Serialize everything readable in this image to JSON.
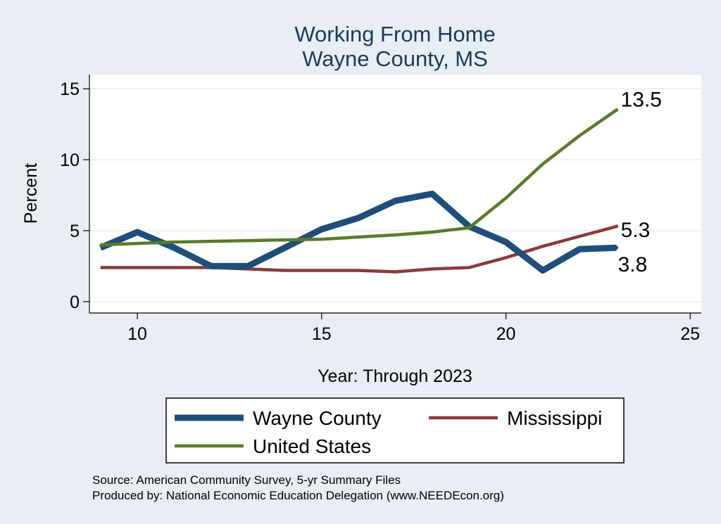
{
  "chart_data": {
    "type": "line",
    "title": [
      "Working From Home",
      "Wayne County, MS"
    ],
    "xlabel": "Year: Through 2023",
    "ylabel": "Percent",
    "xlim": [
      8.7,
      25.3
    ],
    "ylim": [
      -0.8,
      16
    ],
    "x_ticks": [
      10,
      15,
      20,
      25
    ],
    "y_ticks": [
      0,
      5,
      10,
      15
    ],
    "grid": true,
    "legend_position": "bottom",
    "x": [
      9,
      10,
      11,
      12,
      13,
      14,
      15,
      16,
      17,
      18,
      19,
      20,
      21,
      22,
      23
    ],
    "series": [
      {
        "name": "Wayne County",
        "color": "#1f4e79",
        "values": [
          3.8,
          4.9,
          3.8,
          2.5,
          2.5,
          3.8,
          5.1,
          5.9,
          7.1,
          7.6,
          5.3,
          4.2,
          2.2,
          3.7,
          3.8
        ],
        "end_label": "3.8"
      },
      {
        "name": "Mississippi",
        "color": "#8b3a3a",
        "values": [
          2.4,
          2.4,
          2.4,
          2.4,
          2.3,
          2.2,
          2.2,
          2.2,
          2.1,
          2.3,
          2.4,
          3.1,
          3.9,
          4.6,
          5.3
        ],
        "end_label": "5.3"
      },
      {
        "name": "United States",
        "color": "#5a7a2a",
        "values": [
          4.0,
          4.1,
          4.2,
          4.25,
          4.3,
          4.35,
          4.4,
          4.55,
          4.7,
          4.9,
          5.2,
          7.3,
          9.7,
          11.7,
          13.5
        ],
        "end_label": "13.5"
      }
    ]
  },
  "source_lines": [
    "Source: American Community Survey, 5-yr Summary Files",
    "Produced by: National Economic Education Delegation (www.NEEDEcon.org)"
  ]
}
